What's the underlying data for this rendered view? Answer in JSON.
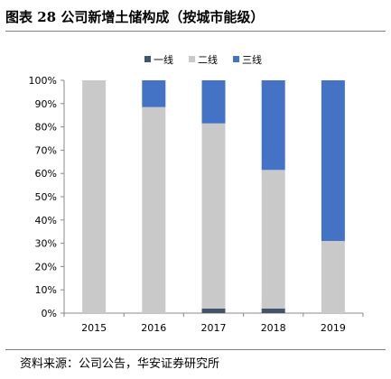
{
  "header": {
    "title": "图表 28  公司新增土储构成（按城市能级）"
  },
  "footer": {
    "source": "资料来源：公司公告，华安证券研究所"
  },
  "chart_data": {
    "type": "bar",
    "stacked": true,
    "percent": true,
    "categories": [
      "2015",
      "2016",
      "2017",
      "2018",
      "2019"
    ],
    "series": [
      {
        "name": "一线",
        "color": "#44546a",
        "values": [
          0,
          0,
          2,
          2,
          0
        ]
      },
      {
        "name": "二线",
        "color": "#c9c9c9",
        "values": [
          100,
          88.5,
          79.5,
          59.5,
          31
        ]
      },
      {
        "name": "三线",
        "color": "#4472c4",
        "values": [
          0,
          11.5,
          18.5,
          38.5,
          69
        ]
      }
    ],
    "yticks": [
      "0%",
      "10%",
      "20%",
      "30%",
      "40%",
      "50%",
      "60%",
      "70%",
      "80%",
      "90%",
      "100%"
    ],
    "ylim": [
      0,
      100
    ],
    "legend": "top-center",
    "grid": false
  }
}
